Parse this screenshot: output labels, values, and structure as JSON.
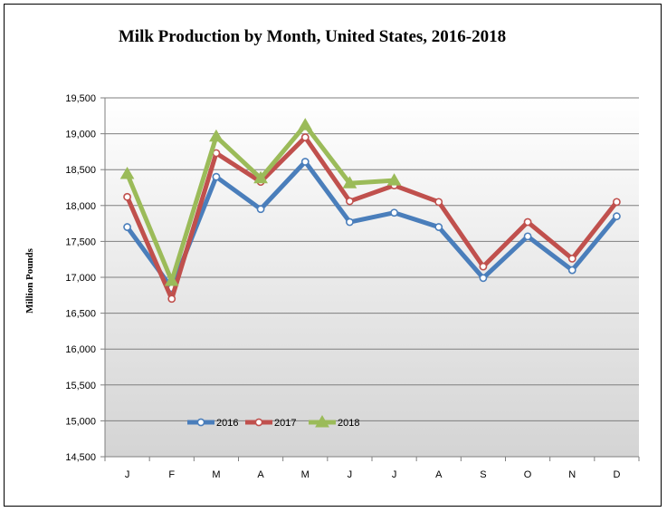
{
  "chart_data": {
    "type": "line",
    "title": "Milk Production by Month, United States, 2016-2018",
    "ylabel": "Million Pounds",
    "xlabel": "",
    "categories": [
      "J",
      "F",
      "M",
      "A",
      "M",
      "J",
      "J",
      "A",
      "S",
      "O",
      "N",
      "D"
    ],
    "ylim": [
      14500,
      19500
    ],
    "yticks": [
      14500,
      15000,
      15500,
      16000,
      16500,
      17000,
      17500,
      18000,
      18500,
      19000,
      19500
    ],
    "ytick_labels": [
      "14,500",
      "15,000",
      "15,500",
      "16,000",
      "16,500",
      "17,000",
      "17,500",
      "18,000",
      "18,500",
      "19,000",
      "19,500"
    ],
    "grid": true,
    "legend_position": "bottom-left inside plot",
    "series": [
      {
        "name": "2016",
        "color": "#4a7ebb",
        "marker": "circle",
        "values": [
          17700,
          16850,
          18400,
          17950,
          18610,
          17770,
          17900,
          17700,
          16990,
          17570,
          17100,
          17850
        ]
      },
      {
        "name": "2017",
        "color": "#c0504d",
        "marker": "circle",
        "values": [
          18120,
          16700,
          18730,
          18330,
          18950,
          18060,
          18280,
          18050,
          17150,
          17770,
          17260,
          18050
        ]
      },
      {
        "name": "2018",
        "color": "#9bbb59",
        "marker": "triangle",
        "values": [
          18440,
          16950,
          18960,
          18380,
          19120,
          18310,
          18350,
          null,
          null,
          null,
          null,
          null
        ]
      }
    ]
  }
}
